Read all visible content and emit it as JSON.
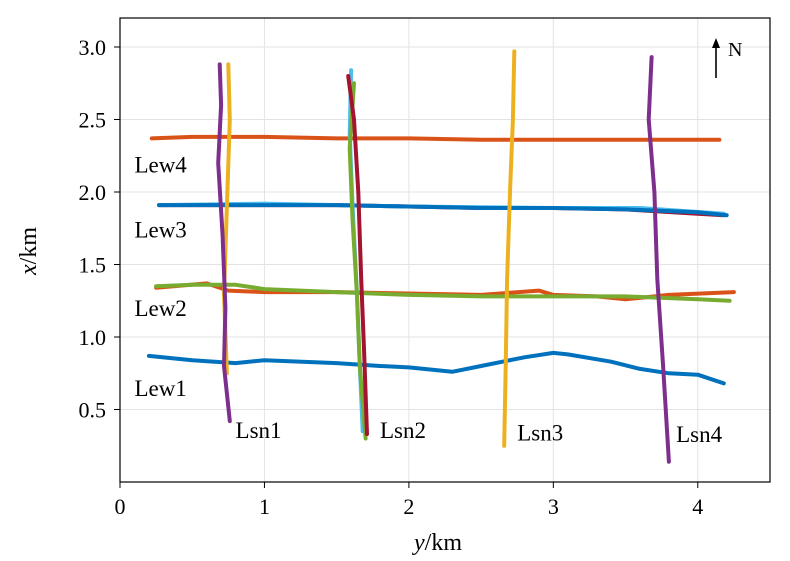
{
  "chart_data": {
    "type": "line",
    "title": "",
    "xlabel": {
      "var": "y",
      "unit": "/km"
    },
    "ylabel": {
      "var": "x",
      "unit": "/km"
    },
    "xlim": [
      0,
      4.5
    ],
    "ylim": [
      0.0,
      3.2
    ],
    "xticks": [
      0,
      1,
      2,
      3,
      4
    ],
    "yticks": [
      0.5,
      1.0,
      1.5,
      2.0,
      2.5,
      3.0
    ],
    "xtick_labels": [
      "0",
      "1",
      "2",
      "3",
      "4"
    ],
    "ytick_labels": [
      "0.5",
      "1.0",
      "1.5",
      "2.0",
      "2.5",
      "3.0"
    ],
    "grid": true,
    "legend": "none",
    "north_arrow": "N",
    "colors": {
      "blue": "#0072bd",
      "orange": "#d95319",
      "yellow": "#edb120",
      "purple": "#7e2f8e",
      "green": "#77ac30",
      "cyan": "#4dbeee",
      "red": "#a2142f"
    },
    "series": [
      {
        "label": "Lew4",
        "color": "#d95319",
        "x": [
          0.22,
          0.5,
          1.0,
          1.5,
          2.0,
          2.5,
          3.0,
          3.5,
          4.0,
          4.15
        ],
        "y": [
          2.37,
          2.38,
          2.38,
          2.37,
          2.37,
          2.36,
          2.36,
          2.36,
          2.36,
          2.36
        ]
      },
      {
        "color": "#a2142f",
        "x": [
          0.27,
          0.6,
          1.0,
          1.5,
          2.0,
          2.5,
          3.0,
          3.5,
          4.0,
          4.18
        ],
        "y": [
          1.91,
          1.91,
          1.91,
          1.91,
          1.9,
          1.89,
          1.89,
          1.88,
          1.85,
          1.84
        ]
      },
      {
        "color": "#4dbeee",
        "x": [
          0.27,
          1.0,
          2.0,
          3.0,
          3.6,
          4.18
        ],
        "y": [
          1.91,
          1.92,
          1.9,
          1.89,
          1.89,
          1.85
        ]
      },
      {
        "label": "Lew3",
        "color": "#0072bd",
        "x": [
          0.27,
          0.6,
          1.0,
          1.5,
          2.0,
          2.5,
          3.0,
          3.5,
          4.0,
          4.2
        ],
        "y": [
          1.91,
          1.91,
          1.91,
          1.91,
          1.9,
          1.89,
          1.89,
          1.88,
          1.86,
          1.84
        ]
      },
      {
        "color": "#d95319",
        "x": [
          0.25,
          0.6,
          0.75,
          1.0,
          1.5,
          2.0,
          2.5,
          2.9,
          3.0,
          3.3,
          3.5,
          3.8,
          4.25
        ],
        "y": [
          1.34,
          1.37,
          1.32,
          1.31,
          1.31,
          1.3,
          1.29,
          1.32,
          1.29,
          1.28,
          1.26,
          1.29,
          1.31
        ]
      },
      {
        "label": "Lew2",
        "color": "#77ac30",
        "x": [
          0.25,
          0.5,
          0.8,
          1.0,
          1.5,
          2.0,
          2.5,
          3.0,
          3.5,
          4.0,
          4.22
        ],
        "y": [
          1.35,
          1.36,
          1.36,
          1.33,
          1.31,
          1.29,
          1.28,
          1.28,
          1.28,
          1.26,
          1.25
        ]
      },
      {
        "label": "Lew1",
        "color": "#0072bd",
        "x": [
          0.2,
          0.5,
          0.8,
          1.0,
          1.5,
          1.8,
          2.0,
          2.3,
          2.5,
          2.8,
          3.0,
          3.1,
          3.4,
          3.6,
          3.8,
          4.0,
          4.18
        ],
        "y": [
          0.87,
          0.84,
          0.82,
          0.84,
          0.82,
          0.8,
          0.79,
          0.76,
          0.8,
          0.86,
          0.89,
          0.88,
          0.83,
          0.78,
          0.75,
          0.74,
          0.68
        ]
      },
      {
        "color": "#edb120",
        "x": [
          0.75,
          0.76,
          0.74,
          0.72,
          0.74
        ],
        "y": [
          2.88,
          2.5,
          1.9,
          1.3,
          0.75
        ]
      },
      {
        "label": "Lsn1",
        "color": "#7e2f8e",
        "x": [
          0.69,
          0.7,
          0.68,
          0.71,
          0.73,
          0.72,
          0.76
        ],
        "y": [
          2.88,
          2.6,
          2.2,
          1.7,
          1.2,
          0.8,
          0.42
        ]
      },
      {
        "color": "#4dbeee",
        "x": [
          1.6,
          1.59,
          1.61,
          1.64,
          1.66,
          1.68
        ],
        "y": [
          2.84,
          2.4,
          1.9,
          1.3,
          0.8,
          0.35
        ]
      },
      {
        "color": "#77ac30",
        "x": [
          1.62,
          1.59,
          1.61,
          1.64,
          1.66,
          1.7
        ],
        "y": [
          2.75,
          2.3,
          1.8,
          1.3,
          0.8,
          0.3
        ]
      },
      {
        "label": "Lsn2",
        "color": "#a2142f",
        "x": [
          1.58,
          1.62,
          1.65,
          1.67,
          1.69,
          1.71
        ],
        "y": [
          2.8,
          2.5,
          2.0,
          1.4,
          0.9,
          0.33
        ]
      },
      {
        "label": "Lsn3",
        "color": "#edb120",
        "x": [
          2.73,
          2.72,
          2.7,
          2.68,
          2.67,
          2.66
        ],
        "y": [
          2.97,
          2.5,
          2.0,
          1.4,
          0.8,
          0.25
        ]
      },
      {
        "label": "Lsn4",
        "color": "#7e2f8e",
        "x": [
          3.68,
          3.66,
          3.7,
          3.72,
          3.76,
          3.8
        ],
        "y": [
          2.93,
          2.5,
          2.0,
          1.4,
          0.8,
          0.14
        ]
      }
    ],
    "annotations": [
      {
        "text": "Lew4",
        "x": 0.1,
        "y": 2.19
      },
      {
        "text": "Lew3",
        "x": 0.1,
        "y": 1.74
      },
      {
        "text": "Lew2",
        "x": 0.1,
        "y": 1.2
      },
      {
        "text": "Lew1",
        "x": 0.1,
        "y": 0.65
      },
      {
        "text": "Lsn1",
        "x": 0.8,
        "y": 0.36
      },
      {
        "text": "Lsn2",
        "x": 1.8,
        "y": 0.36
      },
      {
        "text": "Lsn3",
        "x": 2.75,
        "y": 0.34
      },
      {
        "text": "Lsn4",
        "x": 3.85,
        "y": 0.33
      }
    ]
  }
}
